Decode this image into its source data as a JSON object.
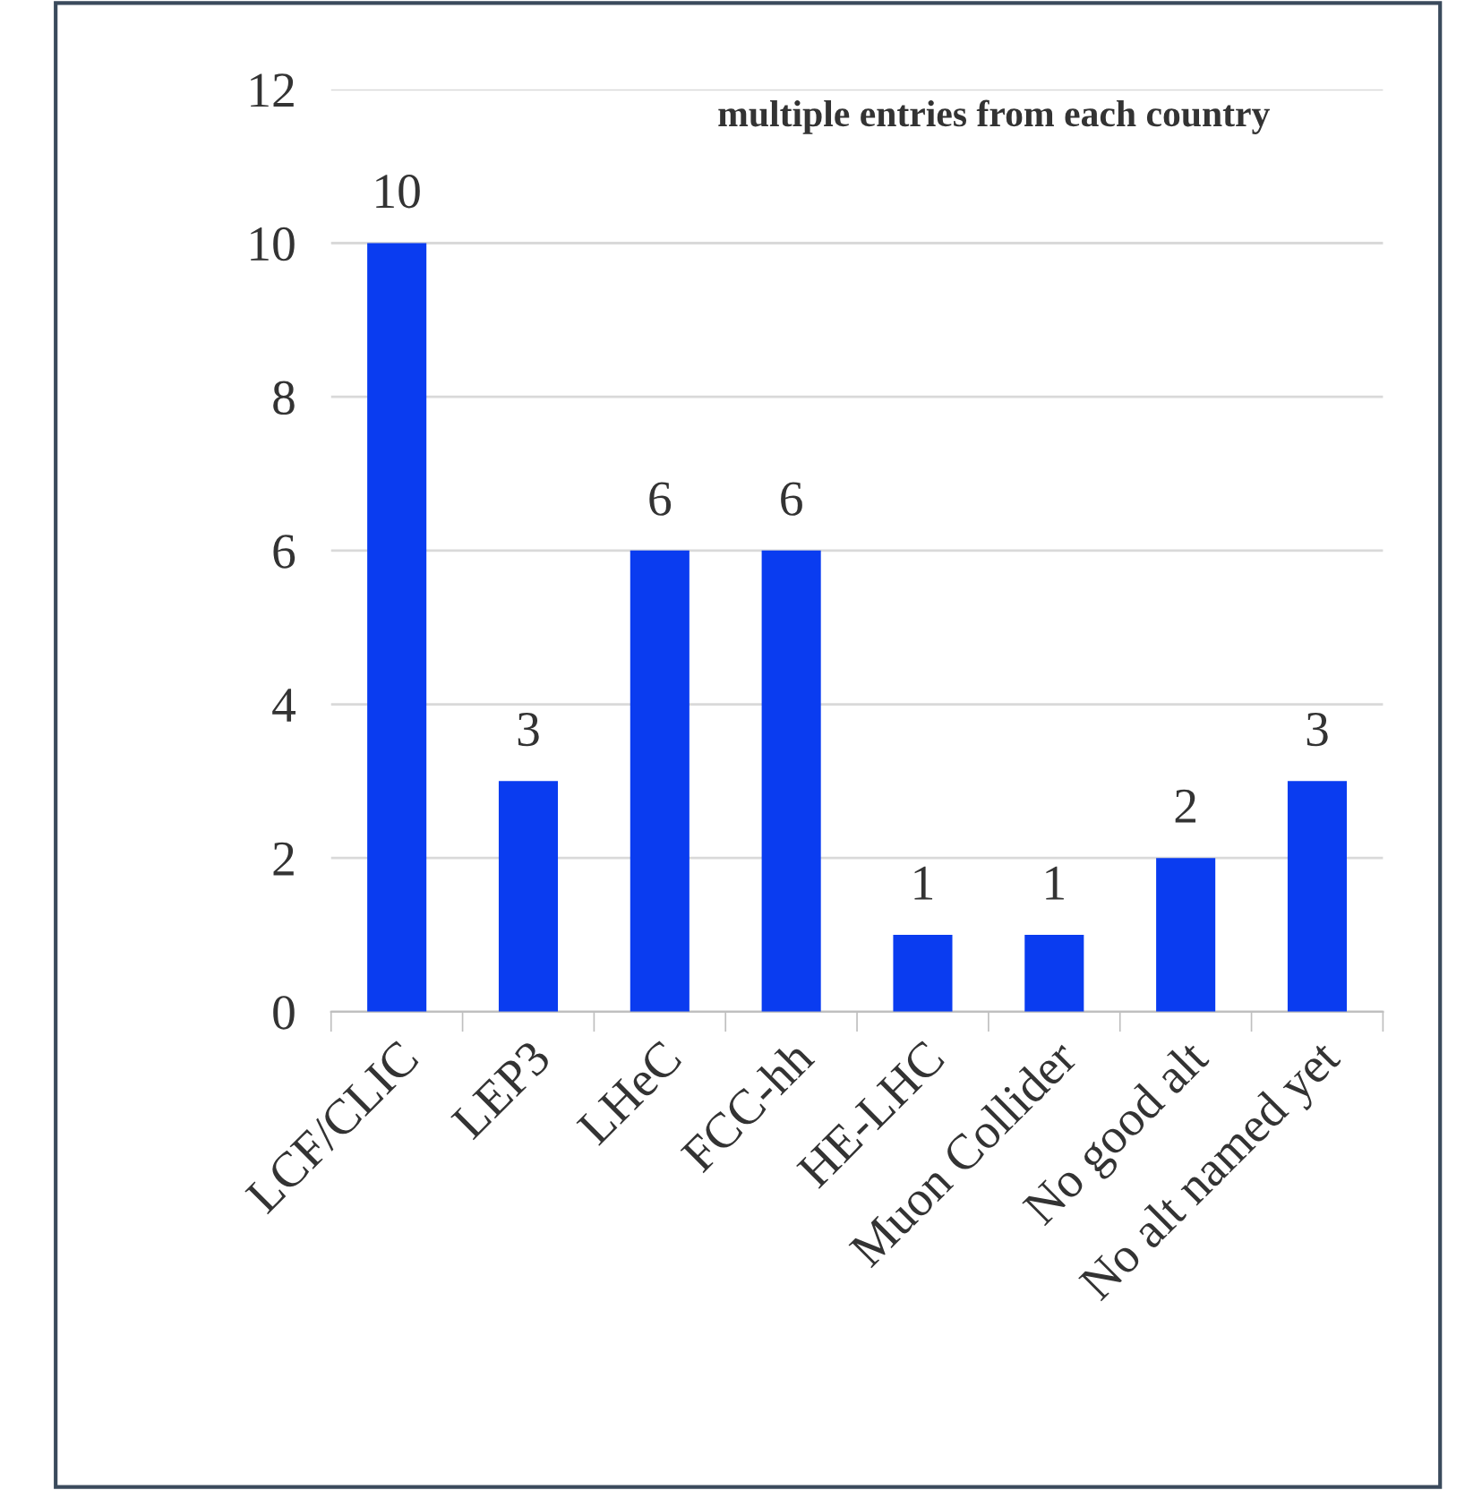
{
  "chart_data": {
    "type": "bar",
    "categories": [
      "LCF/CLIC",
      "LEP3",
      "LHeC",
      "FCC-hh",
      "HE-LHC",
      "Muon Collider",
      "No good alt",
      "No alt named yet"
    ],
    "values": [
      10,
      3,
      6,
      6,
      1,
      1,
      2,
      3
    ],
    "color": "#0a3cf0",
    "ylim": [
      0,
      12
    ],
    "yticks": [
      0,
      2,
      4,
      6,
      8,
      10,
      12
    ],
    "grid": "y",
    "data_labels": true,
    "annotations": [
      "multiple entries from each country"
    ]
  }
}
